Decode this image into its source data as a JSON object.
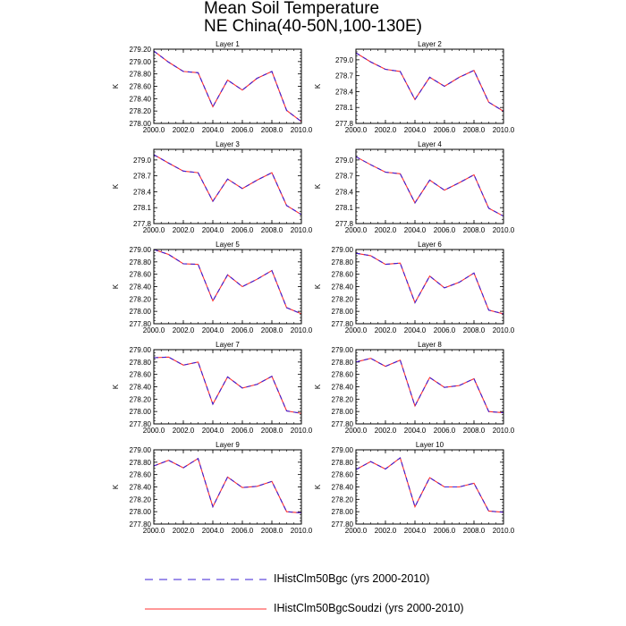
{
  "title_line1": "Mean Soil Temperature",
  "title_line2": "NE China(40-50N,100-130E)",
  "legend": [
    {
      "label": "IHistClm50Bgc (yrs 2000-2010)",
      "color": "#3b1fd6",
      "style": "dashed"
    },
    {
      "label": "IHistClm50BgcSoudzi (yrs 2000-2010)",
      "color": "#ff3030",
      "style": "solid"
    }
  ],
  "chart_data": [
    {
      "type": "line",
      "title": "Layer 1",
      "ylabel": "K",
      "x": [
        2000,
        2001,
        2002,
        2003,
        2004,
        2005,
        2006,
        2007,
        2008,
        2009,
        2010
      ],
      "xlim": [
        2000,
        2010
      ],
      "xticks": [
        "2000.0",
        "2002.0",
        "2004.0",
        "2006.0",
        "2008.0",
        "2010.0"
      ],
      "ylim": [
        278.0,
        279.2
      ],
      "yticks": [
        "278.00",
        "278.20",
        "278.40",
        "278.60",
        "278.80",
        "279.00",
        "279.20"
      ],
      "series": [
        {
          "values": [
            279.17,
            278.99,
            278.84,
            278.82,
            278.27,
            278.7,
            278.54,
            278.73,
            278.84,
            278.21,
            278.03
          ]
        },
        {
          "values": [
            279.17,
            278.99,
            278.84,
            278.82,
            278.27,
            278.7,
            278.54,
            278.73,
            278.84,
            278.21,
            278.03
          ]
        }
      ]
    },
    {
      "type": "line",
      "title": "Layer 2",
      "ylabel": "K",
      "x": [
        2000,
        2001,
        2002,
        2003,
        2004,
        2005,
        2006,
        2007,
        2008,
        2009,
        2010
      ],
      "xlim": [
        2000,
        2010
      ],
      "xticks": [
        "2000.0",
        "2002.0",
        "2004.0",
        "2006.0",
        "2008.0",
        "2010.0"
      ],
      "ylim": [
        277.8,
        279.2
      ],
      "yticks": [
        "277.8",
        "278.1",
        "278.4",
        "278.7",
        "279.0"
      ],
      "series": [
        {
          "values": [
            279.13,
            278.96,
            278.82,
            278.78,
            278.25,
            278.67,
            278.5,
            278.67,
            278.8,
            278.2,
            278.03
          ]
        },
        {
          "values": [
            279.13,
            278.96,
            278.82,
            278.78,
            278.25,
            278.67,
            278.5,
            278.67,
            278.8,
            278.2,
            278.03
          ]
        }
      ]
    },
    {
      "type": "line",
      "title": "Layer 3",
      "ylabel": "K",
      "x": [
        2000,
        2001,
        2002,
        2003,
        2004,
        2005,
        2006,
        2007,
        2008,
        2009,
        2010
      ],
      "xlim": [
        2000,
        2010
      ],
      "xticks": [
        "2000.0",
        "2002.0",
        "2004.0",
        "2006.0",
        "2008.0",
        "2010.0"
      ],
      "ylim": [
        277.8,
        279.2
      ],
      "yticks": [
        "277.8",
        "278.1",
        "278.4",
        "278.7",
        "279.0"
      ],
      "series": [
        {
          "values": [
            279.1,
            278.94,
            278.79,
            278.76,
            278.22,
            278.64,
            278.46,
            278.62,
            278.76,
            278.14,
            277.97
          ]
        },
        {
          "values": [
            279.1,
            278.94,
            278.79,
            278.76,
            278.22,
            278.64,
            278.46,
            278.62,
            278.76,
            278.14,
            277.97
          ]
        }
      ]
    },
    {
      "type": "line",
      "title": "Layer 4",
      "ylabel": "K",
      "x": [
        2000,
        2001,
        2002,
        2003,
        2004,
        2005,
        2006,
        2007,
        2008,
        2009,
        2010
      ],
      "xlim": [
        2000,
        2010
      ],
      "xticks": [
        "2000.0",
        "2002.0",
        "2004.0",
        "2006.0",
        "2008.0",
        "2010.0"
      ],
      "ylim": [
        277.8,
        279.2
      ],
      "yticks": [
        "277.8",
        "278.1",
        "278.4",
        "278.7",
        "279.0"
      ],
      "series": [
        {
          "values": [
            279.06,
            278.91,
            278.77,
            278.74,
            278.19,
            278.62,
            278.43,
            278.57,
            278.72,
            278.09,
            277.94
          ]
        },
        {
          "values": [
            279.06,
            278.91,
            278.77,
            278.74,
            278.19,
            278.62,
            278.43,
            278.57,
            278.72,
            278.09,
            277.94
          ]
        }
      ]
    },
    {
      "type": "line",
      "title": "Layer 5",
      "ylabel": "K",
      "x": [
        2000,
        2001,
        2002,
        2003,
        2004,
        2005,
        2006,
        2007,
        2008,
        2009,
        2010
      ],
      "xlim": [
        2000,
        2010
      ],
      "xticks": [
        "2000.0",
        "2002.0",
        "2004.0",
        "2006.0",
        "2008.0",
        "2010.0"
      ],
      "ylim": [
        277.8,
        279.0
      ],
      "yticks": [
        "277.80",
        "278.00",
        "278.20",
        "278.40",
        "278.60",
        "278.80",
        "279.00"
      ],
      "series": [
        {
          "values": [
            279.0,
            278.92,
            278.77,
            278.76,
            278.17,
            278.59,
            278.4,
            278.52,
            278.66,
            278.06,
            277.96
          ]
        },
        {
          "values": [
            279.0,
            278.92,
            278.77,
            278.76,
            278.17,
            278.59,
            278.4,
            278.52,
            278.66,
            278.06,
            277.96
          ]
        }
      ]
    },
    {
      "type": "line",
      "title": "Layer 6",
      "ylabel": "K",
      "x": [
        2000,
        2001,
        2002,
        2003,
        2004,
        2005,
        2006,
        2007,
        2008,
        2009,
        2010
      ],
      "xlim": [
        2000,
        2010
      ],
      "xticks": [
        "2000.0",
        "2002.0",
        "2004.0",
        "2006.0",
        "2008.0",
        "2010.0"
      ],
      "ylim": [
        277.8,
        279.0
      ],
      "yticks": [
        "277.80",
        "278.00",
        "278.20",
        "278.40",
        "278.60",
        "278.80",
        "279.00"
      ],
      "series": [
        {
          "values": [
            278.94,
            278.9,
            278.76,
            278.78,
            278.14,
            278.57,
            278.38,
            278.47,
            278.62,
            278.02,
            277.96
          ]
        },
        {
          "values": [
            278.94,
            278.9,
            278.76,
            278.78,
            278.14,
            278.57,
            278.38,
            278.47,
            278.62,
            278.02,
            277.96
          ]
        }
      ]
    },
    {
      "type": "line",
      "title": "Layer 7",
      "ylabel": "K",
      "x": [
        2000,
        2001,
        2002,
        2003,
        2004,
        2005,
        2006,
        2007,
        2008,
        2009,
        2010
      ],
      "xlim": [
        2000,
        2010
      ],
      "xticks": [
        "2000.0",
        "2002.0",
        "2004.0",
        "2006.0",
        "2008.0",
        "2010.0"
      ],
      "ylim": [
        277.8,
        279.0
      ],
      "yticks": [
        "277.80",
        "278.00",
        "278.20",
        "278.40",
        "278.60",
        "278.80",
        "279.00"
      ],
      "series": [
        {
          "values": [
            278.87,
            278.88,
            278.75,
            278.8,
            278.12,
            278.56,
            278.38,
            278.44,
            278.57,
            278.01,
            277.97
          ]
        },
        {
          "values": [
            278.87,
            278.88,
            278.75,
            278.8,
            278.12,
            278.56,
            278.38,
            278.44,
            278.57,
            278.01,
            277.97
          ]
        }
      ]
    },
    {
      "type": "line",
      "title": "Layer 8",
      "ylabel": "K",
      "x": [
        2000,
        2001,
        2002,
        2003,
        2004,
        2005,
        2006,
        2007,
        2008,
        2009,
        2010
      ],
      "xlim": [
        2000,
        2010
      ],
      "xticks": [
        "2000.0",
        "2002.0",
        "2004.0",
        "2006.0",
        "2008.0",
        "2010.0"
      ],
      "ylim": [
        277.8,
        279.0
      ],
      "yticks": [
        "277.80",
        "278.00",
        "278.20",
        "278.40",
        "278.60",
        "278.80",
        "279.00"
      ],
      "series": [
        {
          "values": [
            278.8,
            278.86,
            278.73,
            278.83,
            278.09,
            278.55,
            278.39,
            278.42,
            278.53,
            278.0,
            277.98
          ]
        },
        {
          "values": [
            278.8,
            278.86,
            278.73,
            278.83,
            278.09,
            278.55,
            278.39,
            278.42,
            278.53,
            278.0,
            277.98
          ]
        }
      ]
    },
    {
      "type": "line",
      "title": "Layer 9",
      "ylabel": "K",
      "x": [
        2000,
        2001,
        2002,
        2003,
        2004,
        2005,
        2006,
        2007,
        2008,
        2009,
        2010
      ],
      "xlim": [
        2000,
        2010
      ],
      "xticks": [
        "2000.0",
        "2002.0",
        "2004.0",
        "2006.0",
        "2008.0",
        "2010.0"
      ],
      "ylim": [
        277.8,
        279.0
      ],
      "yticks": [
        "277.80",
        "278.00",
        "278.20",
        "278.40",
        "278.60",
        "278.80",
        "279.00"
      ],
      "series": [
        {
          "values": [
            278.74,
            278.83,
            278.71,
            278.86,
            278.08,
            278.56,
            278.39,
            278.41,
            278.49,
            278.0,
            277.98
          ]
        },
        {
          "values": [
            278.74,
            278.83,
            278.71,
            278.86,
            278.08,
            278.56,
            278.39,
            278.41,
            278.49,
            278.0,
            277.98
          ]
        }
      ]
    },
    {
      "type": "line",
      "title": "Layer 10",
      "ylabel": "K",
      "x": [
        2000,
        2001,
        2002,
        2003,
        2004,
        2005,
        2006,
        2007,
        2008,
        2009,
        2010
      ],
      "xlim": [
        2000,
        2010
      ],
      "xticks": [
        "2000.0",
        "2002.0",
        "2004.0",
        "2006.0",
        "2008.0",
        "2010.0"
      ],
      "ylim": [
        277.8,
        279.0
      ],
      "yticks": [
        "277.80",
        "278.00",
        "278.20",
        "278.40",
        "278.60",
        "278.80",
        "279.00"
      ],
      "series": [
        {
          "values": [
            278.68,
            278.81,
            278.69,
            278.87,
            278.08,
            278.55,
            278.4,
            278.4,
            278.46,
            278.01,
            277.99
          ]
        },
        {
          "values": [
            278.68,
            278.81,
            278.69,
            278.87,
            278.08,
            278.55,
            278.4,
            278.4,
            278.46,
            278.01,
            277.99
          ]
        }
      ]
    }
  ]
}
